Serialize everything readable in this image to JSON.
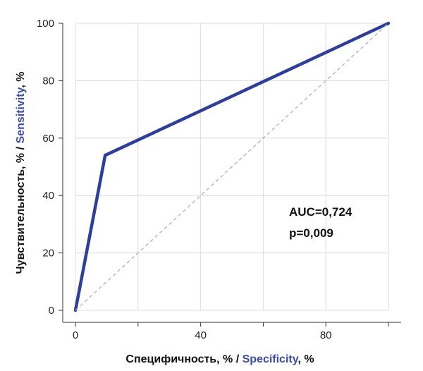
{
  "chart_data": {
    "type": "line",
    "xlabel": {
      "ru": "Специфичность, % / ",
      "en": "Specificity",
      "suffix": ", %"
    },
    "ylabel": {
      "ru": "Чувствительность, % / ",
      "en": "Sensitivity",
      "suffix": ", %"
    },
    "xlim": [
      0,
      100
    ],
    "ylim": [
      0,
      100
    ],
    "x_ticks": [
      0,
      40,
      80
    ],
    "y_ticks": [
      0,
      20,
      40,
      60,
      80,
      100
    ],
    "x_grid": [
      0,
      20,
      40,
      60,
      80,
      100
    ],
    "grid": true,
    "series": [
      {
        "x": [
          0,
          9.5,
          100
        ],
        "y": [
          0,
          54,
          100
        ],
        "color": "#2e3f99",
        "style": "solid"
      },
      {
        "x": [
          0,
          100
        ],
        "y": [
          0,
          100
        ],
        "color": "#b5b5b5",
        "style": "dashed"
      }
    ],
    "annotations": [
      "AUC=0,724",
      "p=0,009"
    ]
  }
}
